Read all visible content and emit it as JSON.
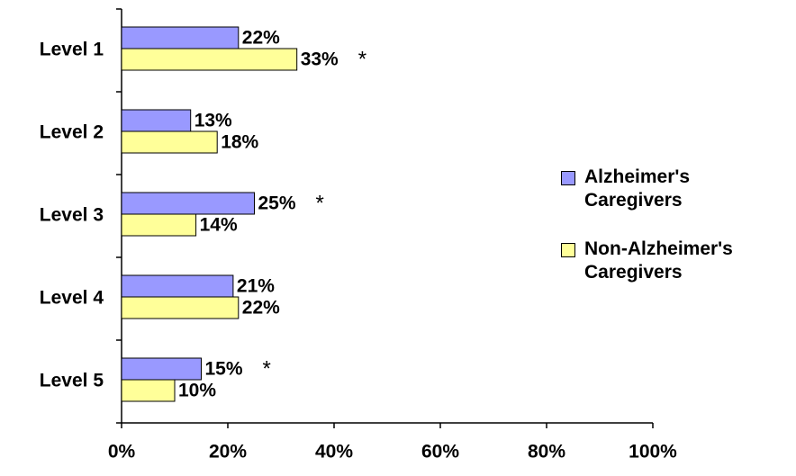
{
  "chart_data": {
    "type": "bar",
    "orientation": "horizontal",
    "categories": [
      "Level 1",
      "Level 2",
      "Level 3",
      "Level 4",
      "Level 5"
    ],
    "series": [
      {
        "name": "Alzheimer's Caregivers",
        "color": "#9999ff",
        "values": [
          22,
          13,
          25,
          21,
          15
        ],
        "value_labels": [
          "22%",
          "13%",
          "25%",
          "21%",
          "15%"
        ],
        "significance": [
          null,
          null,
          "*",
          null,
          "*"
        ]
      },
      {
        "name": "Non-Alzheimer's Caregivers",
        "color": "#ffff99",
        "values": [
          33,
          18,
          14,
          22,
          10
        ],
        "value_labels": [
          "33%",
          "18%",
          "14%",
          "22%",
          "10%"
        ],
        "significance": [
          "*",
          null,
          null,
          null,
          null
        ]
      }
    ],
    "xlim": [
      0,
      100
    ],
    "xticks": [
      {
        "value": 0,
        "label": "0%"
      },
      {
        "value": 20,
        "label": "20%"
      },
      {
        "value": 40,
        "label": "40%"
      },
      {
        "value": 60,
        "label": "60%"
      },
      {
        "value": 80,
        "label": "80%"
      },
      {
        "value": 100,
        "label": "100%"
      }
    ],
    "legend": "right"
  }
}
